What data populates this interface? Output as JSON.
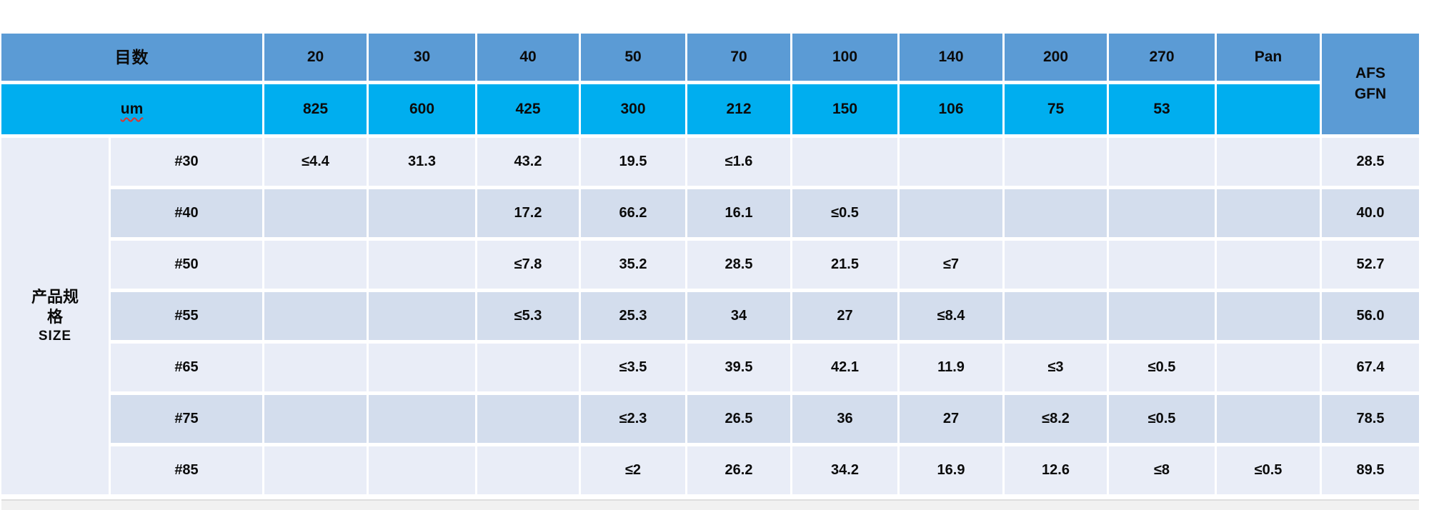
{
  "colors": {
    "header-blue": "#5B9BD5",
    "um-blue": "#00AEEF",
    "row-light": "#E9EDF7",
    "row-dark": "#D3DDED",
    "text": "#0b0b0b",
    "page-bg": "#FFFFFF",
    "strip-bg": "#F1F1F1",
    "squiggle": "#E0342B"
  },
  "table": {
    "header": {
      "mesh_label": "目数",
      "mesh_sizes": [
        "20",
        "30",
        "40",
        "50",
        "70",
        "100",
        "140",
        "200",
        "270",
        "Pan"
      ],
      "um_label": "um",
      "um_values": [
        "825",
        "600",
        "425",
        "300",
        "212",
        "150",
        "106",
        "75",
        "53",
        ""
      ],
      "afs_line1": "AFS",
      "afs_line2": "GFN"
    },
    "row_group": {
      "line1": "产品规",
      "line2": "格",
      "line3": "SIZE"
    },
    "rows": [
      {
        "label": "#30",
        "values": [
          "≤4.4",
          "31.3",
          "43.2",
          "19.5",
          "≤1.6",
          "",
          "",
          "",
          "",
          ""
        ],
        "afs": "28.5"
      },
      {
        "label": "#40",
        "values": [
          "",
          "",
          "17.2",
          "66.2",
          "16.1",
          "≤0.5",
          "",
          "",
          "",
          ""
        ],
        "afs": "40.0"
      },
      {
        "label": "#50",
        "values": [
          "",
          "",
          "≤7.8",
          "35.2",
          "28.5",
          "21.5",
          "≤7",
          "",
          "",
          ""
        ],
        "afs": "52.7"
      },
      {
        "label": "#55",
        "values": [
          "",
          "",
          "≤5.3",
          "25.3",
          "34",
          "27",
          "≤8.4",
          "",
          "",
          ""
        ],
        "afs": "56.0"
      },
      {
        "label": "#65",
        "values": [
          "",
          "",
          "",
          "≤3.5",
          "39.5",
          "42.1",
          "11.9",
          "≤3",
          "≤0.5",
          ""
        ],
        "afs": "67.4"
      },
      {
        "label": "#75",
        "values": [
          "",
          "",
          "",
          "≤2.3",
          "26.5",
          "36",
          "27",
          "≤8.2",
          "≤0.5",
          ""
        ],
        "afs": "78.5"
      },
      {
        "label": "#85",
        "values": [
          "",
          "",
          "",
          "≤2",
          "26.2",
          "34.2",
          "16.9",
          "12.6",
          "≤8",
          "≤0.5"
        ],
        "afs": "89.5"
      }
    ]
  }
}
